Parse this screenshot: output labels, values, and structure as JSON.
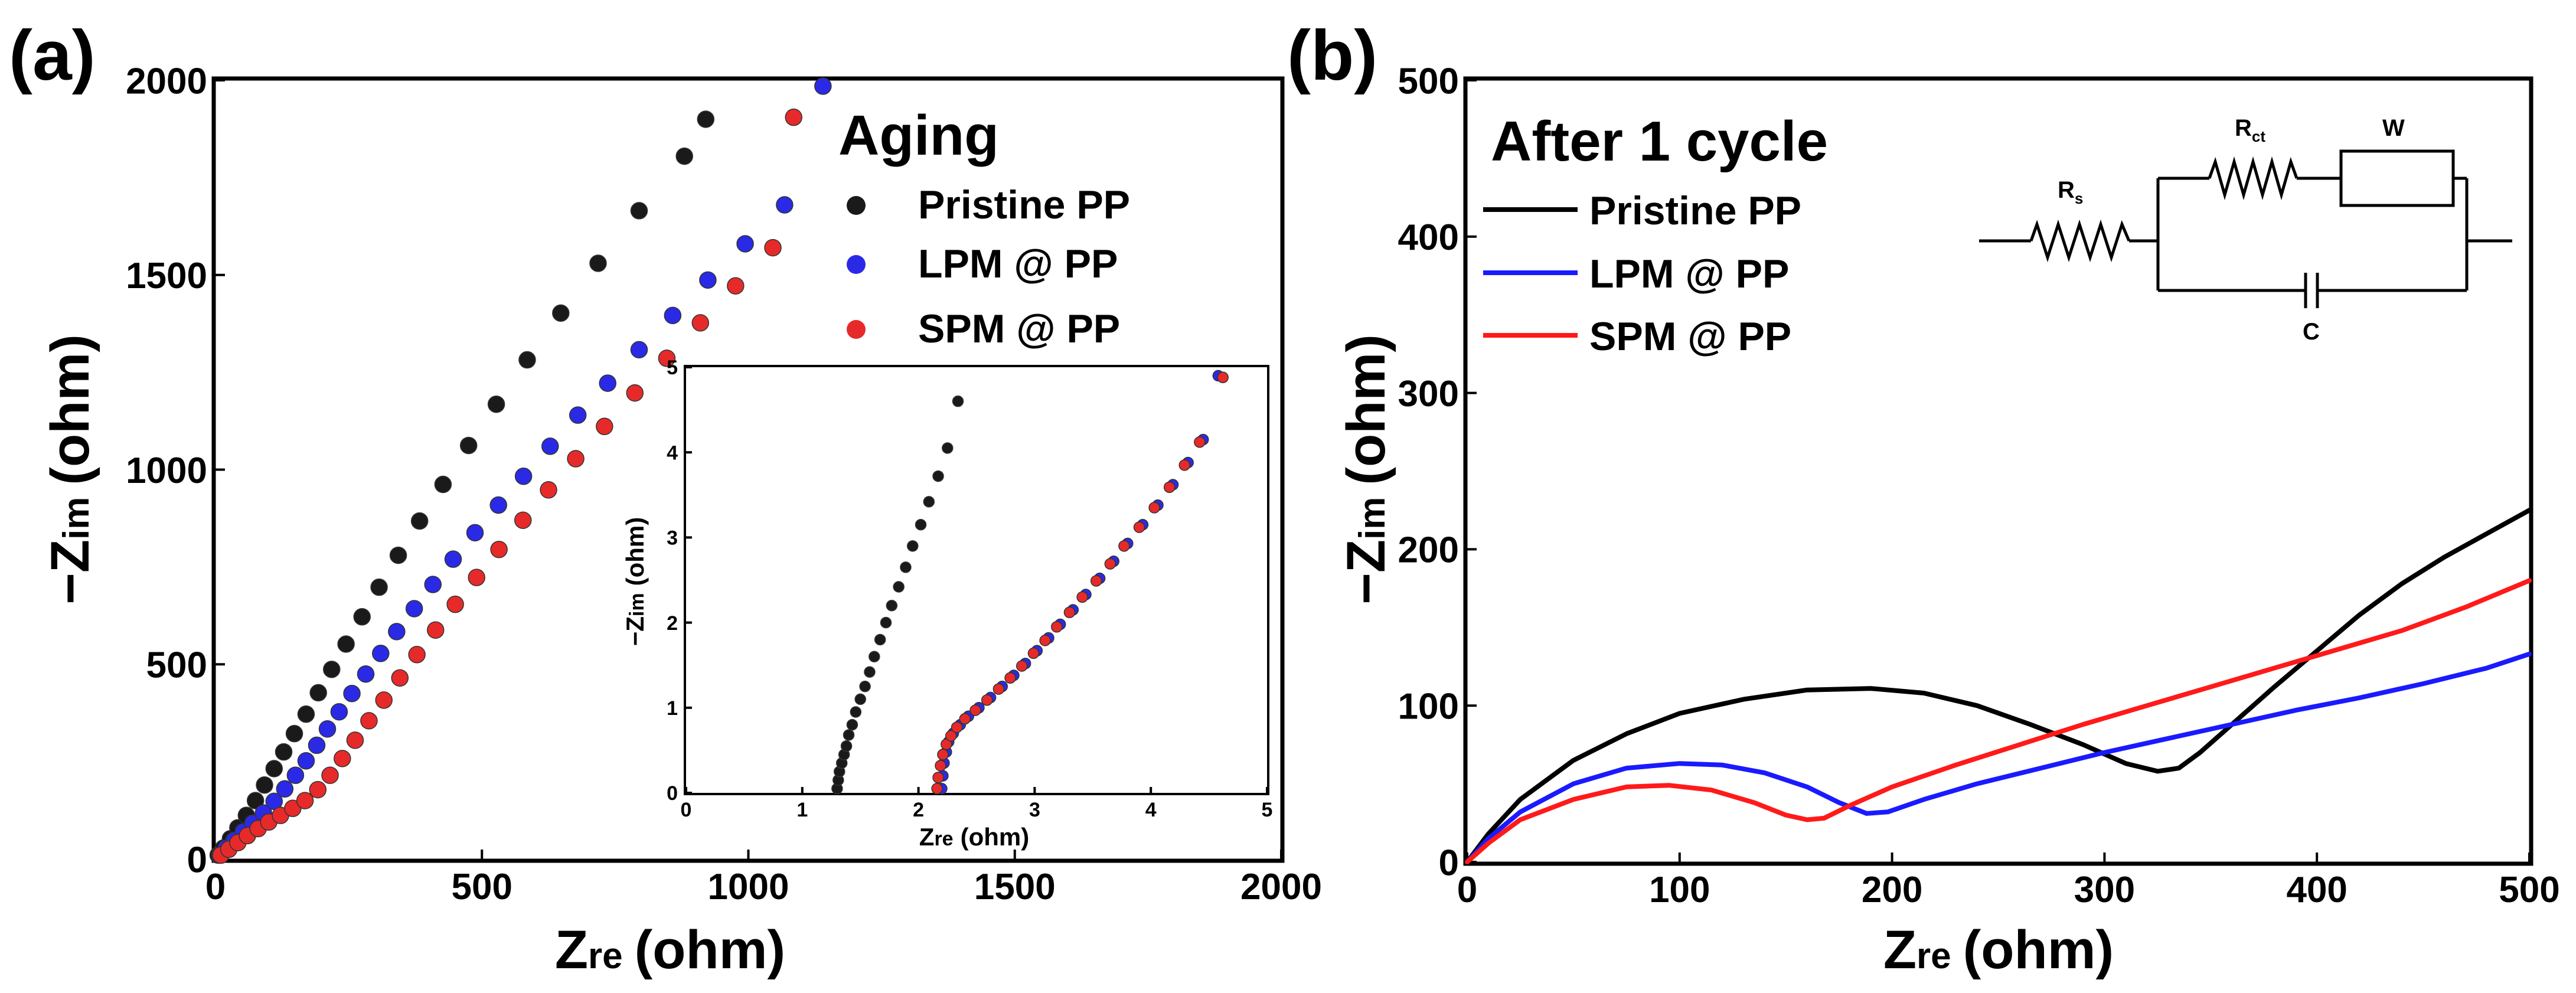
{
  "chart_data": [
    {
      "panel": "(a)",
      "type": "scatter",
      "legend_title": "Aging",
      "xlabel": "Z",
      "xlabel_sub": "re",
      "xlabel_unit": "(ohm)",
      "ylabel": "−Z",
      "ylabel_sub": "im",
      "ylabel_unit": "(ohm)",
      "xlim": [
        0,
        2000
      ],
      "ylim": [
        0,
        2000
      ],
      "xticks": [
        "0",
        "500",
        "1000",
        "1500",
        "2000"
      ],
      "yticks": [
        "0",
        "500",
        "1000",
        "1500",
        "2000"
      ],
      "legend": [
        {
          "name": "Pristine PP",
          "color": "#1a1a1a"
        },
        {
          "name": "LPM @ PP",
          "color": "#2a2ae6"
        },
        {
          "name": "SPM @ PP",
          "color": "#e62a2a"
        }
      ],
      "series": [
        {
          "name": "Pristine PP",
          "color": "#1a1a1a",
          "x": [
            5,
            15,
            28,
            42,
            58,
            75,
            92,
            110,
            128,
            148,
            170,
            193,
            218,
            245,
            275,
            307,
            343,
            383,
            427,
            475,
            527,
            585,
            648,
            718,
            795,
            880,
            920
          ],
          "y": [
            10,
            28,
            52,
            80,
            112,
            150,
            190,
            232,
            275,
            322,
            372,
            427,
            487,
            552,
            622,
            698,
            780,
            868,
            962,
            1062,
            1168,
            1282,
            1402,
            1530,
            1665,
            1805,
            1900
          ]
        },
        {
          "name": "LPM @ PP",
          "color": "#2a2ae6",
          "x": [
            8,
            20,
            35,
            52,
            70,
            90,
            110,
            130,
            150,
            170,
            190,
            210,
            232,
            256,
            282,
            310,
            340,
            373,
            408,
            446,
            487,
            531,
            578,
            628,
            680,
            736,
            795,
            858,
            924,
            994,
            1068,
            1140
          ],
          "y": [
            10,
            28,
            48,
            70,
            92,
            118,
            148,
            180,
            215,
            252,
            292,
            334,
            378,
            425,
            475,
            528,
            584,
            643,
            705,
            770,
            838,
            909,
            983,
            1060,
            1140,
            1222,
            1308,
            1396,
            1487,
            1580,
            1680,
            1985
          ]
        },
        {
          "name": "SPM @ PP",
          "color": "#e62a2a",
          "x": [
            10,
            25,
            42,
            60,
            80,
            100,
            122,
            145,
            168,
            192,
            215,
            238,
            262,
            288,
            316,
            346,
            378,
            413,
            450,
            490,
            532,
            577,
            625,
            676,
            730,
            787,
            847,
            910,
            976,
            1046,
            1085
          ],
          "y": [
            10,
            25,
            42,
            60,
            78,
            95,
            112,
            130,
            150,
            178,
            215,
            258,
            305,
            355,
            408,
            465,
            525,
            588,
            654,
            723,
            795,
            870,
            948,
            1028,
            1111,
            1197,
            1286,
            1377,
            1472,
            1570,
            1905
          ]
        }
      ],
      "inset": {
        "xlabel": "Z",
        "xlabel_sub": "re",
        "xlabel_unit": "(ohm)",
        "ylabel": "−Z",
        "ylabel_sub": "im",
        "ylabel_unit": "(ohm)",
        "xlim": [
          0,
          5
        ],
        "ylim": [
          0,
          5
        ],
        "xticks": [
          "0",
          "1",
          "2",
          "3",
          "4",
          "5"
        ],
        "yticks": [
          "0",
          "1",
          "2",
          "3",
          "4",
          "5"
        ],
        "series": [
          {
            "name": "Pristine PP",
            "color": "#1a1a1a",
            "x": [
              1.3,
              1.31,
              1.32,
              1.34,
              1.36,
              1.38,
              1.4,
              1.43,
              1.46,
              1.5,
              1.54,
              1.58,
              1.62,
              1.67,
              1.72,
              1.77,
              1.83,
              1.89,
              1.95,
              2.02,
              2.09,
              2.17,
              2.25,
              2.34
            ],
            "y": [
              0.05,
              0.15,
              0.25,
              0.35,
              0.45,
              0.55,
              0.68,
              0.8,
              0.95,
              1.1,
              1.25,
              1.42,
              1.6,
              1.8,
              2.0,
              2.2,
              2.42,
              2.65,
              2.9,
              3.15,
              3.42,
              3.72,
              4.05,
              4.6
            ]
          },
          {
            "name": "LPM @ PP",
            "color": "#2a2ae6",
            "x": [
              2.2,
              2.21,
              2.22,
              2.24,
              2.26,
              2.3,
              2.36,
              2.43,
              2.52,
              2.62,
              2.72,
              2.82,
              2.92,
              3.02,
              3.12,
              3.22,
              3.33,
              3.44,
              3.56,
              3.68,
              3.8,
              3.93,
              4.06,
              4.19,
              4.32,
              4.45,
              4.58
            ],
            "y": [
              0.05,
              0.2,
              0.35,
              0.48,
              0.6,
              0.7,
              0.8,
              0.9,
              1.0,
              1.12,
              1.25,
              1.38,
              1.52,
              1.67,
              1.82,
              1.98,
              2.15,
              2.33,
              2.52,
              2.72,
              2.93,
              3.15,
              3.38,
              3.62,
              3.88,
              4.15,
              4.9
            ]
          },
          {
            "name": "SPM @ PP",
            "color": "#e62a2a",
            "x": [
              2.16,
              2.17,
              2.19,
              2.21,
              2.24,
              2.28,
              2.33,
              2.4,
              2.49,
              2.59,
              2.69,
              2.79,
              2.89,
              2.99,
              3.09,
              3.19,
              3.3,
              3.41,
              3.53,
              3.65,
              3.77,
              3.9,
              4.03,
              4.16,
              4.29,
              4.42,
              4.62
            ],
            "y": [
              0.05,
              0.18,
              0.32,
              0.45,
              0.57,
              0.67,
              0.77,
              0.87,
              0.97,
              1.09,
              1.22,
              1.35,
              1.49,
              1.64,
              1.79,
              1.95,
              2.12,
              2.3,
              2.49,
              2.69,
              2.9,
              3.12,
              3.35,
              3.59,
              3.85,
              4.12,
              4.88
            ]
          }
        ]
      }
    },
    {
      "panel": "(b)",
      "type": "line",
      "legend_title": "After 1 cycle",
      "xlabel": "Z",
      "xlabel_sub": "re",
      "xlabel_unit": "(ohm)",
      "ylabel": "−Z",
      "ylabel_sub": "im",
      "ylabel_unit": "(ohm)",
      "xlim": [
        0,
        500
      ],
      "ylim": [
        0,
        500
      ],
      "xticks": [
        "0",
        "100",
        "200",
        "300",
        "400",
        "500"
      ],
      "yticks": [
        "0",
        "100",
        "200",
        "300",
        "400",
        "500"
      ],
      "legend": [
        {
          "name": "Pristine PP",
          "color": "#000000"
        },
        {
          "name": "LPM @ PP",
          "color": "#1a1aff"
        },
        {
          "name": "SPM @ PP",
          "color": "#ff1a1a"
        }
      ],
      "series": [
        {
          "name": "Pristine PP",
          "color": "#000000",
          "x": [
            0,
            10,
            25,
            50,
            75,
            100,
            130,
            160,
            190,
            215,
            240,
            265,
            290,
            310,
            325,
            335,
            345,
            360,
            380,
            400,
            420,
            440,
            460,
            480,
            500
          ],
          "y": [
            0,
            18,
            40,
            65,
            82,
            95,
            104,
            110,
            111,
            108,
            100,
            88,
            75,
            63,
            58,
            60,
            70,
            88,
            112,
            135,
            158,
            178,
            195,
            210,
            225
          ]
        },
        {
          "name": "LPM @ PP",
          "color": "#1a1aff",
          "x": [
            0,
            10,
            25,
            50,
            75,
            100,
            120,
            140,
            160,
            175,
            188,
            198,
            215,
            240,
            270,
            300,
            330,
            360,
            390,
            420,
            450,
            480,
            500
          ],
          "y": [
            0,
            15,
            32,
            50,
            60,
            63,
            62,
            57,
            48,
            38,
            31,
            32,
            40,
            50,
            60,
            70,
            79,
            88,
            97,
            105,
            114,
            124,
            133
          ]
        },
        {
          "name": "SPM @ PP",
          "color": "#ff1a1a",
          "x": [
            0,
            10,
            25,
            50,
            75,
            95,
            115,
            135,
            150,
            160,
            168,
            180,
            200,
            230,
            260,
            290,
            320,
            350,
            380,
            410,
            440,
            470,
            500
          ],
          "y": [
            0,
            12,
            27,
            40,
            48,
            49,
            46,
            38,
            30,
            27,
            28,
            36,
            48,
            62,
            75,
            88,
            100,
            112,
            124,
            136,
            148,
            163,
            180
          ]
        }
      ],
      "circuit": {
        "labels": [
          "R",
          "s",
          "R",
          "ct",
          "W",
          "C"
        ]
      }
    }
  ]
}
